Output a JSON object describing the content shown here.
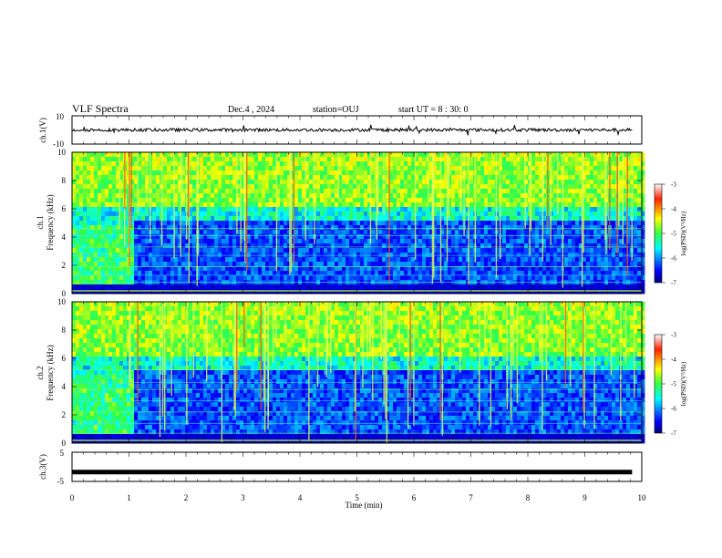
{
  "header": {
    "title": "VLF Spectra",
    "date": "Dec.4 , 2024",
    "station": "station=OUJ",
    "start": "start  UT =  8 : 30: 0"
  },
  "chart_data": [
    {
      "type": "line",
      "panel": "ch1-waveform",
      "ylabel": "ch.1(V)",
      "ylim": [
        -10,
        10
      ],
      "ytick_labels": [
        "10",
        "-10"
      ],
      "baseline": 0,
      "color": "#000000"
    },
    {
      "type": "heatmap",
      "panel": "ch1-spectrogram",
      "ylabel": "ch.1\nFrequency (kHz)",
      "ylim": [
        0,
        10
      ],
      "ytick_labels": [
        "0",
        "2",
        "4",
        "6",
        "8",
        "10"
      ],
      "colorbar": {
        "label": "log(PSD)(V²/Hz)",
        "ticks": [
          "-3",
          "-4",
          "-5",
          "-6",
          "-7"
        ],
        "range": [
          -7,
          -3
        ]
      }
    },
    {
      "type": "heatmap",
      "panel": "ch2-spectrogram",
      "ylabel": "ch.2\nFrequency (kHz)",
      "ylim": [
        0,
        10
      ],
      "ytick_labels": [
        "0",
        "2",
        "4",
        "6",
        "8",
        "10"
      ],
      "colorbar": {
        "label": "log(PSD)(V²/Hz)",
        "ticks": [
          "-3",
          "-4",
          "-5",
          "-6",
          "-7"
        ],
        "range": [
          -7,
          -3
        ]
      }
    },
    {
      "type": "line",
      "panel": "ch3-waveform",
      "ylabel": "ch.3(V)",
      "ylim": [
        -5,
        5
      ],
      "ytick_labels": [
        "5",
        "-5"
      ],
      "constant_value": -1.8,
      "color": "#000000"
    }
  ],
  "xaxis": {
    "label": "Time (min)",
    "range": [
      0,
      10
    ],
    "tick_labels": [
      "0",
      "1",
      "2",
      "3",
      "4",
      "5",
      "6",
      "7",
      "8",
      "9",
      "10"
    ]
  }
}
